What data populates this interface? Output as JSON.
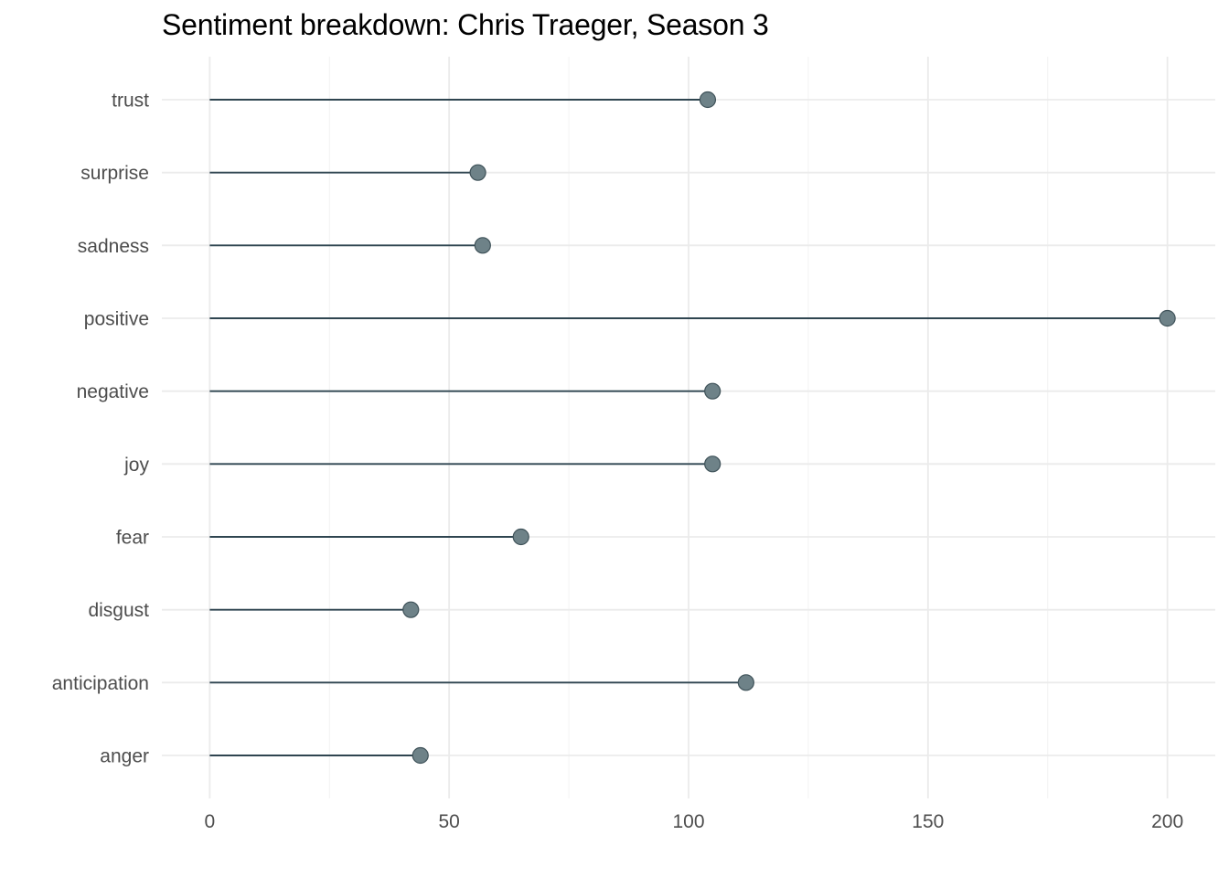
{
  "chart_data": {
    "type": "lollipop",
    "title": "Sentiment breakdown: Chris Traeger, Season 3",
    "xlabel": "",
    "ylabel": "",
    "categories": [
      "anger",
      "anticipation",
      "disgust",
      "fear",
      "joy",
      "negative",
      "positive",
      "sadness",
      "surprise",
      "trust"
    ],
    "values": [
      44,
      112,
      42,
      65,
      105,
      105,
      200,
      57,
      56,
      104
    ],
    "xlim": [
      -10,
      210
    ],
    "x_ticks": [
      0,
      50,
      100,
      150,
      200
    ],
    "x_minor_ticks": [
      25,
      75,
      125,
      175
    ],
    "grid": true,
    "legend": "none",
    "colors": {
      "stem": "#2f4550",
      "point_fill": "#6e8288",
      "point_stroke": "#3f5259",
      "grid_major": "#ebebeb",
      "grid_minor": "#f3f3f3",
      "tick_text": "#4d4d4d"
    }
  }
}
